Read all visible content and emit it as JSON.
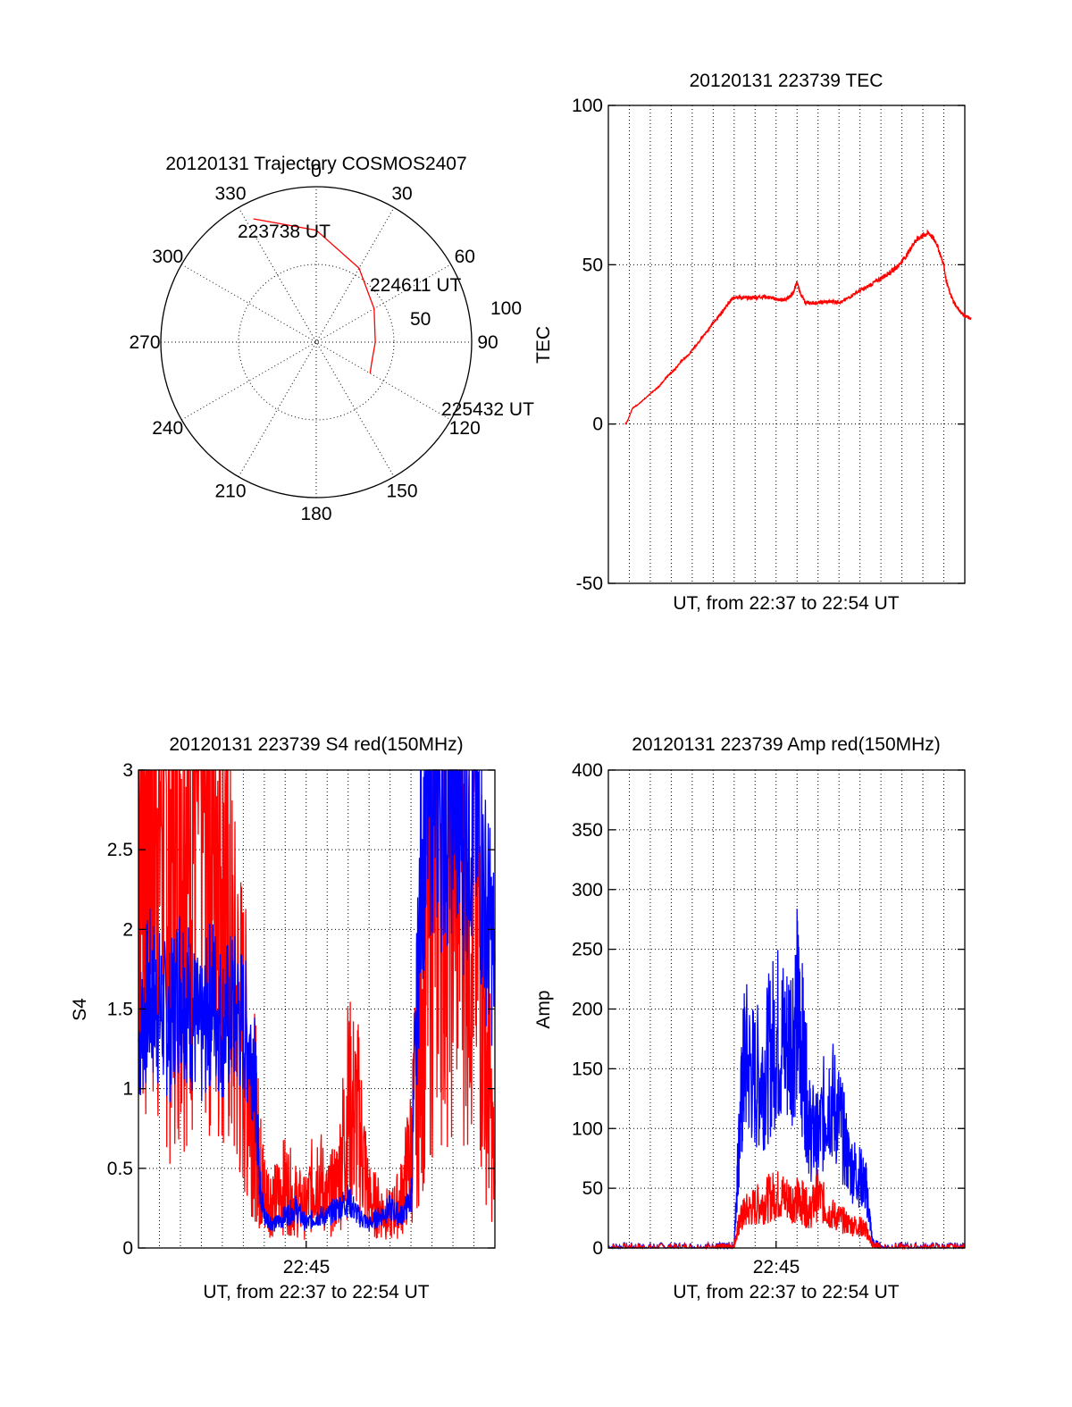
{
  "chart_data": [
    {
      "type": "polar",
      "title": "20120131 Trajectory COSMOS2407",
      "angle_labels": [
        "0",
        "30",
        "60",
        "90",
        "120",
        "150",
        "180",
        "210",
        "240",
        "270",
        "300",
        "330"
      ],
      "radial_labels": [
        "50",
        "100"
      ],
      "annotations": [
        "223738 UT",
        "224611 UT",
        "225432 UT"
      ],
      "series": [
        {
          "color": "#ff0000",
          "points": [
            [
              -27,
              89
            ],
            [
              0,
              72
            ],
            [
              30,
              55
            ],
            [
              60,
              43
            ],
            [
              90,
              38
            ],
            [
              110,
              38
            ],
            [
              120,
              40
            ]
          ]
        }
      ],
      "rmax": 100
    },
    {
      "type": "line",
      "title": "20120131 223739 TEC",
      "xlabel": "UT, from 22:37 to 22:54 UT",
      "ylabel": "TEC",
      "ylim": [
        -50,
        100
      ],
      "yticks": [
        "-50",
        "0",
        "50",
        "100"
      ],
      "grid": true,
      "series": [
        {
          "color": "#ff0000",
          "x": [
            0,
            0.1,
            0.2,
            0.3,
            0.5,
            0.8,
            1.1,
            1.4,
            1.7,
            2.0,
            2.3,
            2.6,
            2.9,
            3.2,
            3.5,
            3.8,
            4.1,
            4.3,
            4.5,
            4.8,
            5.2,
            5.6,
            6.0,
            6.2,
            6.4,
            6.6,
            6.8,
            6.95,
            7.1,
            7.3,
            7.6,
            8.0,
            8.4,
            8.8,
            9.3,
            9.8,
            10.2,
            10.6,
            10.8,
            11.1,
            11.4,
            11.7,
            12.0,
            12.3,
            12.6,
            12.9,
            13.0,
            13.2,
            13.4,
            13.6,
            13.75,
            14.0
          ],
          "y": [
            0,
            1,
            3,
            5,
            6,
            8,
            10,
            12,
            15,
            17,
            20,
            22,
            25,
            28,
            31,
            34,
            37,
            39,
            40,
            39.5,
            39.7,
            40,
            39.5,
            39,
            39,
            39.5,
            41,
            44.5,
            41,
            38,
            38,
            38.2,
            38.5,
            38.3,
            41,
            43,
            45,
            47,
            48,
            50,
            53,
            57,
            59,
            60,
            57,
            50,
            45,
            40,
            37,
            35,
            34,
            33
          ]
        }
      ]
    },
    {
      "type": "line",
      "title": "20120131 223739 S4 red(150MHz)",
      "xlabel": "UT, from 22:37 to 22:54 UT",
      "ylabel": "S4",
      "xtick_label": "22:45",
      "ylim": [
        0,
        3
      ],
      "yticks": [
        "0",
        "0.5",
        "1",
        "1.5",
        "2",
        "2.5",
        "3"
      ],
      "grid": true,
      "series": [
        {
          "color": "#ff0000",
          "x": [
            0,
            0.5,
            1,
            1.5,
            2,
            2.5,
            3,
            3.5,
            4,
            4.5,
            5,
            5.5,
            5.8,
            6,
            6.5,
            7,
            7.5,
            8,
            8.5,
            9,
            9.5,
            10,
            10.5,
            11,
            11.5,
            12,
            12.5,
            13,
            13.5,
            14,
            14.5,
            15,
            15.5,
            16,
            16.5,
            17
          ],
          "y": [
            3,
            3,
            3,
            2.5,
            3,
            3,
            3,
            3,
            2.8,
            1.6,
            1.3,
            0.9,
            0.5,
            0.35,
            0.3,
            0.4,
            0.3,
            0.25,
            0.5,
            0.3,
            0.4,
            0.9,
            0.8,
            0.3,
            0.25,
            0.2,
            0.3,
            0.6,
            1.5,
            2.5,
            3,
            3,
            3,
            2.5,
            1.5,
            0.4
          ]
        },
        {
          "color": "#0000ff",
          "x": [
            0,
            0.5,
            1,
            1.5,
            2,
            2.5,
            3,
            3.5,
            4,
            4.5,
            5,
            5.5,
            5.8,
            6,
            6.5,
            7,
            7.5,
            8,
            8.5,
            9,
            9.5,
            10,
            10.5,
            11,
            11.5,
            12,
            12.5,
            13,
            13.5,
            14,
            14.5,
            15,
            15.5,
            16,
            16.5,
            17
          ],
          "y": [
            1.3,
            1.6,
            1.5,
            1.4,
            1.7,
            1.5,
            1.3,
            1.6,
            1.4,
            1.5,
            1.4,
            1.2,
            0.4,
            0.2,
            0.15,
            0.2,
            0.25,
            0.15,
            0.2,
            0.2,
            0.25,
            0.3,
            0.2,
            0.15,
            0.2,
            0.25,
            0.2,
            0.3,
            2.5,
            3,
            2.8,
            3,
            2.6,
            2.9,
            2.2,
            1.8
          ]
        }
      ]
    },
    {
      "type": "line",
      "title": "20120131 223739 Amp red(150MHz)",
      "xlabel": "UT, from 22:37 to 22:54 UT",
      "ylabel": "Amp",
      "xtick_label": "22:45",
      "ylim": [
        0,
        400
      ],
      "yticks": [
        "0",
        "50",
        "100",
        "150",
        "200",
        "250",
        "300",
        "350",
        "400"
      ],
      "grid": true,
      "series": [
        {
          "color": "#0000ff",
          "x": [
            0,
            1,
            2,
            3,
            4,
            5,
            5.5,
            6,
            6.2,
            6.5,
            7,
            7.5,
            8,
            8.5,
            9,
            9.3,
            9.6,
            10,
            10.5,
            11,
            11.5,
            12,
            12.3,
            12.6,
            13,
            14,
            15,
            16,
            17
          ],
          "y": [
            1,
            1,
            1,
            1,
            1,
            1,
            1,
            2,
            80,
            160,
            140,
            150,
            180,
            170,
            200,
            160,
            100,
            90,
            130,
            110,
            70,
            60,
            50,
            5,
            1,
            1,
            1,
            1,
            1
          ]
        },
        {
          "color": "#ff0000",
          "x": [
            0,
            1,
            2,
            3,
            4,
            5,
            5.5,
            6,
            6.2,
            6.5,
            7,
            7.5,
            8,
            8.5,
            9,
            9.3,
            9.6,
            10,
            10.5,
            11,
            11.5,
            12,
            12.3,
            12.6,
            13,
            14,
            15,
            16,
            17
          ],
          "y": [
            0,
            0,
            0,
            0,
            0,
            0,
            0,
            1,
            20,
            30,
            35,
            40,
            45,
            42,
            40,
            38,
            30,
            45,
            30,
            25,
            20,
            18,
            15,
            2,
            0,
            0,
            0,
            0,
            0
          ]
        }
      ]
    }
  ]
}
